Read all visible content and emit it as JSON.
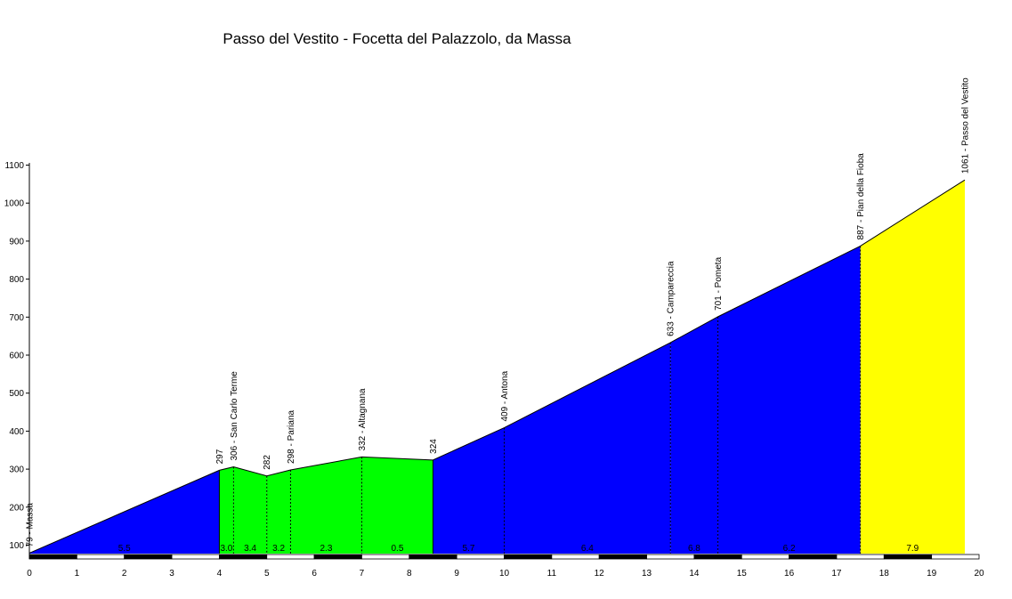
{
  "chart_data": {
    "type": "area",
    "title": "Passo del Vestito - Focetta del Palazzolo, da Massa",
    "xlabel": "",
    "ylabel": "",
    "xlim": [
      0,
      20
    ],
    "ylim": [
      70,
      1100
    ],
    "x_ticks": [
      0,
      1,
      2,
      3,
      4,
      5,
      6,
      7,
      8,
      9,
      10,
      11,
      12,
      13,
      14,
      15,
      16,
      17,
      18,
      19,
      20
    ],
    "y_ticks": [
      100,
      200,
      300,
      400,
      500,
      600,
      700,
      800,
      900,
      1000,
      1100
    ],
    "grid": false,
    "legend": "none",
    "profile": [
      {
        "km": 0,
        "alt": 79
      },
      {
        "km": 4.0,
        "alt": 297
      },
      {
        "km": 4.3,
        "alt": 306
      },
      {
        "km": 5.0,
        "alt": 282
      },
      {
        "km": 5.5,
        "alt": 298
      },
      {
        "km": 7.0,
        "alt": 332
      },
      {
        "km": 8.5,
        "alt": 324
      },
      {
        "km": 10.0,
        "alt": 409
      },
      {
        "km": 13.5,
        "alt": 633
      },
      {
        "km": 14.5,
        "alt": 701
      },
      {
        "km": 17.5,
        "alt": 887
      },
      {
        "km": 19.7,
        "alt": 1061
      }
    ],
    "waypoints": [
      {
        "km": 0,
        "label": "79 - Massa",
        "dashed": false
      },
      {
        "km": 4.0,
        "label": "297",
        "dashed": false
      },
      {
        "km": 4.3,
        "label": "306 - San Carlo Terme",
        "dashed": true
      },
      {
        "km": 5.0,
        "label": "282",
        "dashed": true
      },
      {
        "km": 5.5,
        "label": "298 - Pariana",
        "dashed": true
      },
      {
        "km": 7.0,
        "label": "332 - Altagnana",
        "dashed": true
      },
      {
        "km": 8.5,
        "label": "324",
        "dashed": false
      },
      {
        "km": 10.0,
        "label": "409 - Antona",
        "dashed": true
      },
      {
        "km": 13.5,
        "label": "633 - Campareccia",
        "dashed": true
      },
      {
        "km": 14.5,
        "label": "701 - Pometa",
        "dashed": true
      },
      {
        "km": 17.5,
        "label": "887 - Pian della Fioba",
        "dashed": true
      },
      {
        "km": 19.7,
        "label": "1061 - Passo del Vestito",
        "dashed": false
      }
    ],
    "segments": [
      {
        "from": 0,
        "to": 4.0,
        "color": "#0000ff",
        "gradient": "5.5"
      },
      {
        "from": 4.0,
        "to": 4.3,
        "color": "#00ff00",
        "gradient": "3.0"
      },
      {
        "from": 4.3,
        "to": 5.0,
        "color": "#00ff00",
        "gradient": "3.4"
      },
      {
        "from": 5.0,
        "to": 5.5,
        "color": "#00ff00",
        "gradient": "3.2"
      },
      {
        "from": 5.5,
        "to": 7.0,
        "color": "#00ff00",
        "gradient": "2.3"
      },
      {
        "from": 7.0,
        "to": 8.5,
        "color": "#00ff00",
        "gradient": "0.5"
      },
      {
        "from": 8.5,
        "to": 10.0,
        "color": "#0000ff",
        "gradient": "5.7"
      },
      {
        "from": 10.0,
        "to": 13.5,
        "color": "#0000ff",
        "gradient": "6.4"
      },
      {
        "from": 13.5,
        "to": 14.5,
        "color": "#0000ff",
        "gradient": "6.8"
      },
      {
        "from": 14.5,
        "to": 17.5,
        "color": "#0000ff",
        "gradient": "6.2"
      },
      {
        "from": 17.5,
        "to": 19.7,
        "color": "#ffff00",
        "gradient": "7.9"
      }
    ]
  }
}
